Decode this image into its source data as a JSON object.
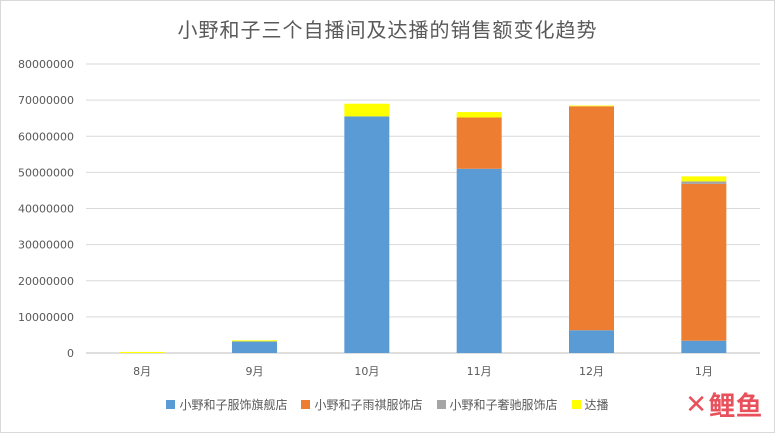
{
  "colors": {
    "flagship": "#5b9bd5",
    "yuqi": "#ed7d31",
    "shechi": "#a5a5a5",
    "daren": "#ffff00",
    "grid": "#d9d9d9",
    "axis": "#bfbfbf"
  },
  "watermark": {
    "logo_text": "鲤鱼"
  },
  "chart_data": {
    "type": "bar",
    "stacked": true,
    "title": "小野和子三个自播间及达播的销售额变化趋势",
    "xlabel": "",
    "ylabel": "",
    "categories": [
      "8月",
      "9月",
      "10月",
      "11月",
      "12月",
      "1月"
    ],
    "series": [
      {
        "name": "小野和子服饰旗舰店",
        "color": "#5b9bd5",
        "values": [
          0,
          3200000,
          65500000,
          51000000,
          6300000,
          3400000
        ]
      },
      {
        "name": "小野和子雨祺服饰店",
        "color": "#ed7d31",
        "values": [
          0,
          0,
          0,
          14200000,
          62000000,
          43400000
        ]
      },
      {
        "name": "小野和子奢驰服饰店",
        "color": "#a5a5a5",
        "values": [
          0,
          0,
          0,
          0,
          0,
          700000
        ]
      },
      {
        "name": "达播",
        "color": "#ffff00",
        "values": [
          300000,
          300000,
          3500000,
          1500000,
          200000,
          1400000
        ]
      }
    ],
    "ylim": [
      0,
      80000000
    ],
    "yticks": [
      0,
      10000000,
      20000000,
      30000000,
      40000000,
      50000000,
      60000000,
      70000000,
      80000000
    ],
    "grid": true,
    "legend_position": "bottom"
  }
}
